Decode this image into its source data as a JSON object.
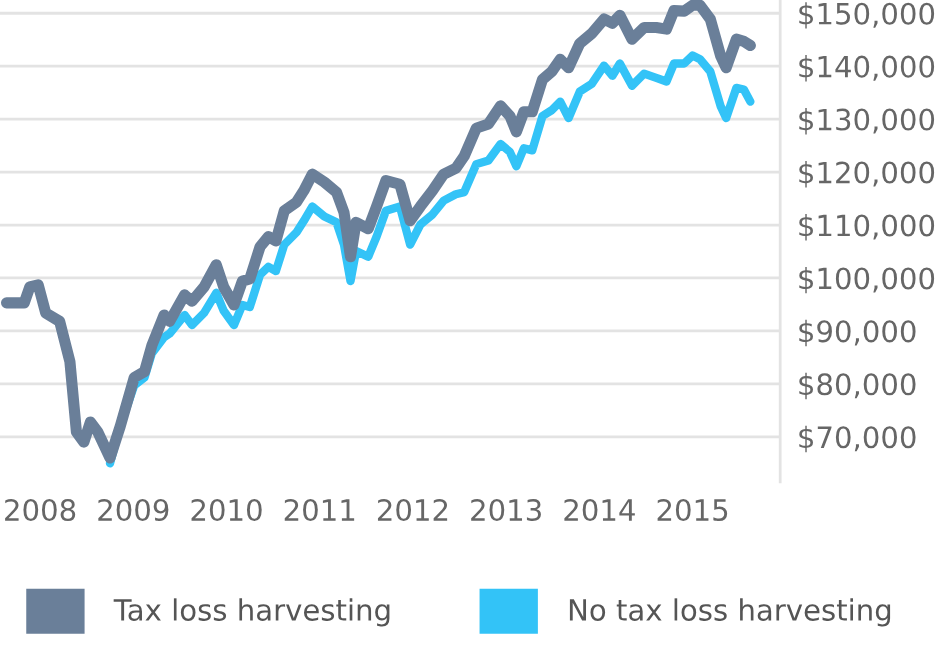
{
  "chart_data": {
    "type": "line",
    "x": [
      2007.64,
      2007.83,
      2007.89,
      2007.98,
      2008.06,
      2008.21,
      2008.32,
      2008.39,
      2008.47,
      2008.54,
      2008.62,
      2008.75,
      2008.86,
      2009.01,
      2009.12,
      2009.2,
      2009.33,
      2009.39,
      2009.55,
      2009.63,
      2009.76,
      2009.89,
      2009.97,
      2010.08,
      2010.17,
      2010.25,
      2010.36,
      2010.45,
      2010.53,
      2010.62,
      2010.75,
      2010.83,
      2010.92,
      2011.05,
      2011.18,
      2011.26,
      2011.33,
      2011.39,
      2011.52,
      2011.61,
      2011.71,
      2011.86,
      2011.97,
      2012.08,
      2012.21,
      2012.33,
      2012.46,
      2012.55,
      2012.68,
      2012.81,
      2012.94,
      2013.04,
      2013.11,
      2013.19,
      2013.28,
      2013.39,
      2013.49,
      2013.58,
      2013.67,
      2013.79,
      2013.92,
      2014.05,
      2014.14,
      2014.22,
      2014.35,
      2014.48,
      2014.61,
      2014.72,
      2014.8,
      2014.91,
      2015.0,
      2015.08,
      2015.19,
      2015.3,
      2015.36,
      2015.47,
      2015.55,
      2015.62
    ],
    "series": [
      {
        "name": "Tax loss harvesting",
        "color": "#6a7f99",
        "values": [
          95300,
          95300,
          98300,
          98700,
          93400,
          91800,
          84200,
          70900,
          69000,
          72800,
          70900,
          66000,
          72000,
          81200,
          82300,
          87300,
          93000,
          91800,
          96800,
          95600,
          98300,
          102500,
          98300,
          94900,
          99400,
          99800,
          105900,
          107800,
          107000,
          112700,
          114300,
          116500,
          119600,
          118100,
          116200,
          112400,
          104000,
          110500,
          109300,
          113500,
          118400,
          117700,
          110800,
          113500,
          116500,
          119600,
          120700,
          123000,
          128300,
          129100,
          132500,
          130600,
          127600,
          131400,
          131400,
          137500,
          139000,
          141300,
          139700,
          144300,
          146200,
          148900,
          148100,
          149600,
          145100,
          147300,
          147300,
          147000,
          150500,
          150400,
          151500,
          151500,
          148900,
          142000,
          139700,
          145100,
          144700,
          143900
        ]
      },
      {
        "name": "No tax loss harvesting",
        "color": "#33c3f7",
        "values": [
          null,
          null,
          null,
          null,
          null,
          null,
          null,
          null,
          null,
          null,
          null,
          65000,
          72000,
          79700,
          81200,
          85800,
          88800,
          89500,
          93000,
          91100,
          93400,
          97200,
          93800,
          91100,
          94900,
          94500,
          100600,
          102100,
          101300,
          106300,
          108600,
          110800,
          113500,
          111600,
          110500,
          106300,
          99400,
          105100,
          104000,
          107800,
          112700,
          113500,
          106300,
          110100,
          112000,
          114600,
          115800,
          116200,
          121500,
          122200,
          125300,
          123800,
          121100,
          124500,
          124100,
          130600,
          131700,
          133300,
          130200,
          135200,
          136700,
          140100,
          138200,
          140500,
          136300,
          138600,
          137800,
          137100,
          140500,
          140500,
          142000,
          141300,
          139000,
          132500,
          130200,
          135900,
          135600,
          133300
        ]
      }
    ],
    "xlim": [
      2007.57,
      2015.94
    ],
    "xticks": [
      {
        "value": 2008,
        "label": "2008"
      },
      {
        "value": 2009,
        "label": "2009"
      },
      {
        "value": 2010,
        "label": "2010"
      },
      {
        "value": 2011,
        "label": "2011"
      },
      {
        "value": 2012,
        "label": "2012"
      },
      {
        "value": 2013,
        "label": "2013"
      },
      {
        "value": 2014,
        "label": "2014"
      },
      {
        "value": 2015,
        "label": "2015"
      }
    ],
    "ylim": [
      61500,
      152500
    ],
    "yticks": [
      {
        "value": 70000,
        "label": "$70,000"
      },
      {
        "value": 80000,
        "label": "$80,000"
      },
      {
        "value": 90000,
        "label": "$90,000"
      },
      {
        "value": 100000,
        "label": "$100,000"
      },
      {
        "value": 110000,
        "label": "$110,000"
      },
      {
        "value": 120000,
        "label": "$120,000"
      },
      {
        "value": 130000,
        "label": "$130,000"
      },
      {
        "value": 140000,
        "label": "$140,000"
      },
      {
        "value": 150000,
        "label": "$150,000"
      }
    ],
    "grid": "y",
    "legend": "bottom",
    "marker": "none",
    "line_style": "solid"
  }
}
